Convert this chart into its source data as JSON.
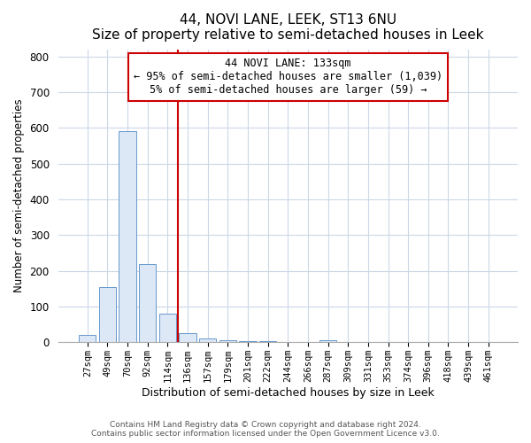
{
  "title": "44, NOVI LANE, LEEK, ST13 6NU",
  "subtitle": "Size of property relative to semi-detached houses in Leek",
  "xlabel": "Distribution of semi-detached houses by size in Leek",
  "ylabel": "Number of semi-detached properties",
  "footnote1": "Contains HM Land Registry data © Crown copyright and database right 2024.",
  "footnote2": "Contains public sector information licensed under the Open Government Licence v3.0.",
  "bar_labels": [
    "27sqm",
    "49sqm",
    "70sqm",
    "92sqm",
    "114sqm",
    "136sqm",
    "157sqm",
    "179sqm",
    "201sqm",
    "222sqm",
    "244sqm",
    "266sqm",
    "287sqm",
    "309sqm",
    "331sqm",
    "353sqm",
    "374sqm",
    "396sqm",
    "418sqm",
    "439sqm",
    "461sqm"
  ],
  "bar_values": [
    20,
    155,
    590,
    218,
    80,
    25,
    10,
    5,
    3,
    2,
    1,
    0,
    5,
    0,
    0,
    0,
    0,
    0,
    0,
    0,
    0
  ],
  "bar_color": "#dce8f5",
  "bar_edge_color": "#6699cc",
  "ylim": [
    0,
    820
  ],
  "yticks": [
    0,
    100,
    200,
    300,
    400,
    500,
    600,
    700,
    800
  ],
  "property_line_label": "44 NOVI LANE: 133sqm",
  "annotation_smaller": "← 95% of semi-detached houses are smaller (1,039)",
  "annotation_larger": "5% of semi-detached houses are larger (59) →",
  "box_color": "#ffffff",
  "box_edge_color": "#cc0000",
  "line_color": "#cc0000",
  "bg_color": "#ffffff",
  "grid_color": "#ccd8e8",
  "title_fontsize": 11,
  "subtitle_fontsize": 10
}
